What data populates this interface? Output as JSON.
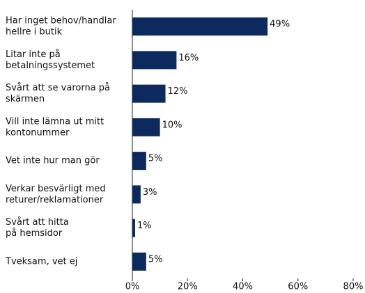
{
  "chart_data": {
    "type": "bar",
    "orientation": "horizontal",
    "categories": [
      [
        "Har inget behov/handlar",
        "hellre i butik"
      ],
      [
        "Litar inte på",
        "betalningssystemet"
      ],
      [
        "Svårt att se varorna på",
        "skärmen"
      ],
      [
        "Vill inte lämna ut mitt",
        "kontonummer"
      ],
      [
        "Vet inte hur man gör"
      ],
      [
        "Verkar besvärligt med",
        "returer/reklamationer"
      ],
      [
        "Svårt att hitta",
        "på hemsidor"
      ],
      [
        "Tveksam, vet ej"
      ]
    ],
    "values": [
      49,
      16,
      12,
      10,
      5,
      3,
      1,
      5
    ],
    "value_labels": [
      "49%",
      "16%",
      "12%",
      "10%",
      "5%",
      "3%",
      "1%",
      "5%"
    ],
    "color": "#0d2a5e",
    "xlim": [
      0,
      80
    ],
    "xticks": [
      {
        "value": 0,
        "label": "0%"
      },
      {
        "value": 20,
        "label": "20%"
      },
      {
        "value": 40,
        "label": "40%"
      },
      {
        "value": 60,
        "label": "60%"
      },
      {
        "value": 80,
        "label": "80%"
      }
    ]
  }
}
